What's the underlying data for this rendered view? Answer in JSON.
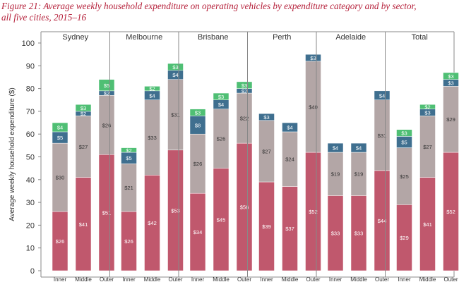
{
  "figure": {
    "title_line1": "Figure 21: Average weekly household expenditure on operating vehicles by expenditure category and by sector,",
    "title_line2": "all five cities, 2015–16"
  },
  "colors": {
    "bottom_segment": "#c0586d",
    "second_segment": "#b3a6a6",
    "third_segment": "#3f6f8f",
    "top_segment": "#4fbf74",
    "title": "#b5203a",
    "axis": "#666666"
  },
  "chart_data": {
    "type": "bar",
    "stacked": true,
    "ylabel": "Average weekly household expenditure ($)",
    "ylim": [
      0,
      100
    ],
    "yticks": [
      0,
      10,
      20,
      30,
      40,
      50,
      60,
      70,
      80,
      90,
      100
    ],
    "grid": false,
    "value_prefix": "$",
    "groups": [
      {
        "name": "Sydney",
        "categories": [
          "Inner",
          "Middle",
          "Outer"
        ],
        "stacks": [
          [
            26,
            30,
            5,
            4
          ],
          [
            41,
            27,
            2,
            3
          ],
          [
            51,
            26,
            2,
            5
          ]
        ]
      },
      {
        "name": "Melbourne",
        "categories": [
          "Inner",
          "Middle",
          "Outer"
        ],
        "stacks": [
          [
            26,
            21,
            5,
            2
          ],
          [
            42,
            33,
            4,
            2
          ],
          [
            53,
            31,
            4,
            3
          ]
        ]
      },
      {
        "name": "Brisbane",
        "categories": [
          "Inner",
          "Middle",
          "Outer"
        ],
        "stacks": [
          [
            34,
            26,
            8,
            3
          ],
          [
            45,
            26,
            4,
            3
          ],
          [
            56,
            22,
            2,
            3
          ]
        ]
      },
      {
        "name": "Perth",
        "categories": [
          "Inner",
          "Middle",
          "Outer"
        ],
        "stacks": [
          [
            39,
            27,
            3
          ],
          [
            37,
            24,
            4
          ],
          [
            52,
            40,
            3
          ]
        ]
      },
      {
        "name": "Adelaide",
        "categories": [
          "Inner",
          "Middle",
          "Outer"
        ],
        "stacks": [
          [
            33,
            19,
            4
          ],
          [
            33,
            19,
            4
          ],
          [
            44,
            31,
            4
          ]
        ]
      },
      {
        "name": "Total",
        "categories": [
          "Inner",
          "Middle",
          "Outer"
        ],
        "stacks": [
          [
            29,
            25,
            5,
            3
          ],
          [
            41,
            27,
            3,
            2
          ],
          [
            52,
            29,
            3,
            3
          ]
        ]
      }
    ]
  }
}
